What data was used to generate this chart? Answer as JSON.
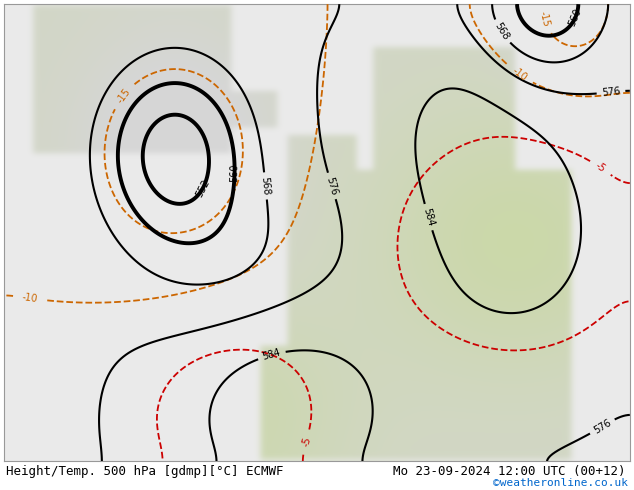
{
  "title_left": "Height/Temp. 500 hPa [gdmp][°C] ECMWF",
  "title_right": "Mo 23-09-2024 12:00 UTC (00+12)",
  "credit": "©weatheronline.co.uk",
  "bg_color": "#d3d3d3",
  "land_light_color": "#c8d8a0",
  "land_dark_color": "#b0b0b0",
  "sea_color": "#e8e8e8",
  "font_size_title": 9,
  "font_size_credit": 8,
  "contour_color_height": "#000000",
  "contour_color_temp_warm": "#cc6600",
  "contour_color_temp_cold_cyan": "#00cccc",
  "contour_color_temp_cold_red": "#cc0000",
  "contour_color_temp_green": "#88cc00"
}
